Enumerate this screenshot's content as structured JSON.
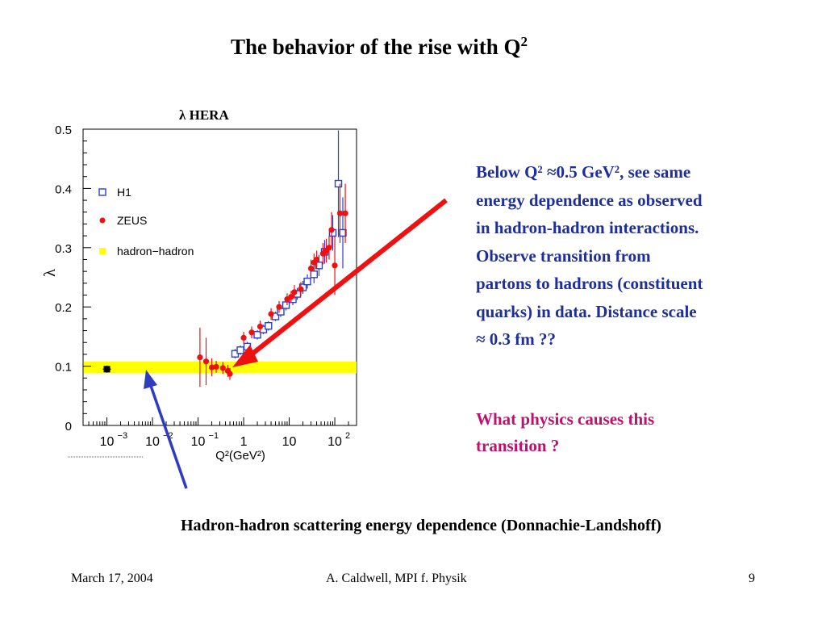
{
  "slide": {
    "title_main": "The behavior of the rise with Q",
    "title_sup": "2",
    "explanation_lines": [
      "Below Q² ≈0.5 GeV², see same",
      "energy dependence as observed",
      "in hadron-hadron interactions.",
      "Observe transition from",
      "partons to hadrons (constituent",
      "quarks) in data. Distance scale",
      "≈ 0.3 fm ??"
    ],
    "question_lines": [
      "What physics causes this",
      "transition ?"
    ],
    "caption": "Hadron-hadron scattering energy dependence (Donnachie-Landshoff)",
    "footer": {
      "date": "March 17, 2004",
      "author": "A. Caldwell, MPI f. Physik",
      "page": "9"
    },
    "colors": {
      "explanation": "#1f2f9a",
      "question": "#c0106e",
      "red_arrow": "#ee1111",
      "blue_arrow": "#2e3cc0"
    }
  },
  "chart_data": {
    "type": "scatter",
    "title": "λ HERA",
    "xlabel": "Q²(GeV²)",
    "ylabel": "λ",
    "xscale": "log",
    "xlim": [
      0.0003,
      300
    ],
    "ylim": [
      0,
      0.5
    ],
    "x_ticks": [
      {
        "value": 0.001,
        "base": "10",
        "exp": "−3"
      },
      {
        "value": 0.01,
        "base": "10",
        "exp": "−2"
      },
      {
        "value": 0.1,
        "base": "10",
        "exp": "−1"
      },
      {
        "value": 1,
        "base": "1",
        "exp": ""
      },
      {
        "value": 10,
        "base": "10",
        "exp": ""
      },
      {
        "value": 100,
        "base": "10",
        "exp": "2"
      }
    ],
    "y_ticks": [
      {
        "value": 0,
        "label": "0"
      },
      {
        "value": 0.1,
        "label": "0.1"
      },
      {
        "value": 0.2,
        "label": "0.2"
      },
      {
        "value": 0.3,
        "label": "0.3"
      },
      {
        "value": 0.4,
        "label": "0.4"
      },
      {
        "value": 0.5,
        "label": "0.5"
      }
    ],
    "band": {
      "name": "hadron−hadron",
      "y_low": 0.088,
      "y_high": 0.108,
      "color": "#ffff00"
    },
    "legend": {
      "placement": "top-left",
      "entries": [
        {
          "label": "H1",
          "marker": "open-square",
          "color": "#2a3ed0"
        },
        {
          "label": "ZEUS",
          "marker": "filled-circle",
          "color": "#ee1111"
        },
        {
          "label": "hadron−hadron",
          "marker": "filled-square",
          "color": "#ffff00"
        }
      ]
    },
    "series": [
      {
        "name": "H1",
        "marker": "open-square",
        "color": "#2a3ed0",
        "points": [
          {
            "x": 0.65,
            "y": 0.121,
            "err": 0.008
          },
          {
            "x": 0.85,
            "y": 0.127,
            "err": 0.008
          },
          {
            "x": 1.2,
            "y": 0.133,
            "err": 0.008
          },
          {
            "x": 2.0,
            "y": 0.153,
            "err": 0.008
          },
          {
            "x": 2.7,
            "y": 0.162,
            "err": 0.008
          },
          {
            "x": 3.5,
            "y": 0.168,
            "err": 0.008
          },
          {
            "x": 5.0,
            "y": 0.184,
            "err": 0.008
          },
          {
            "x": 6.5,
            "y": 0.192,
            "err": 0.009
          },
          {
            "x": 8.5,
            "y": 0.203,
            "err": 0.009
          },
          {
            "x": 12,
            "y": 0.213,
            "err": 0.01
          },
          {
            "x": 15,
            "y": 0.222,
            "err": 0.01
          },
          {
            "x": 20,
            "y": 0.233,
            "err": 0.011
          },
          {
            "x": 25,
            "y": 0.243,
            "err": 0.012
          },
          {
            "x": 35,
            "y": 0.255,
            "err": 0.015
          },
          {
            "x": 45,
            "y": 0.27,
            "err": 0.018
          },
          {
            "x": 60,
            "y": 0.293,
            "err": 0.02
          },
          {
            "x": 90,
            "y": 0.325,
            "err": 0.03
          },
          {
            "x": 120,
            "y": 0.408,
            "err": 0.09
          },
          {
            "x": 150,
            "y": 0.325,
            "err": 0.06
          }
        ]
      },
      {
        "name": "ZEUS",
        "marker": "filled-circle",
        "color": "#ee1111",
        "points": [
          {
            "x": 0.11,
            "y": 0.115,
            "err": 0.05
          },
          {
            "x": 0.15,
            "y": 0.108,
            "err": 0.04
          },
          {
            "x": 0.2,
            "y": 0.098,
            "err": 0.015
          },
          {
            "x": 0.25,
            "y": 0.099,
            "err": 0.01
          },
          {
            "x": 0.35,
            "y": 0.097,
            "err": 0.01
          },
          {
            "x": 0.45,
            "y": 0.092,
            "err": 0.01
          },
          {
            "x": 0.5,
            "y": 0.087,
            "err": 0.01
          },
          {
            "x": 1.0,
            "y": 0.148,
            "err": 0.01
          },
          {
            "x": 1.5,
            "y": 0.157,
            "err": 0.01
          },
          {
            "x": 2.3,
            "y": 0.167,
            "err": 0.01
          },
          {
            "x": 4.0,
            "y": 0.188,
            "err": 0.01
          },
          {
            "x": 6.0,
            "y": 0.2,
            "err": 0.01
          },
          {
            "x": 9.0,
            "y": 0.213,
            "err": 0.01
          },
          {
            "x": 11,
            "y": 0.217,
            "err": 0.01
          },
          {
            "x": 13,
            "y": 0.225,
            "err": 0.012
          },
          {
            "x": 18,
            "y": 0.23,
            "err": 0.012
          },
          {
            "x": 30,
            "y": 0.265,
            "err": 0.015
          },
          {
            "x": 35,
            "y": 0.275,
            "err": 0.015
          },
          {
            "x": 40,
            "y": 0.28,
            "err": 0.015
          },
          {
            "x": 55,
            "y": 0.29,
            "err": 0.018
          },
          {
            "x": 65,
            "y": 0.295,
            "err": 0.02
          },
          {
            "x": 75,
            "y": 0.3,
            "err": 0.02
          },
          {
            "x": 85,
            "y": 0.33,
            "err": 0.03
          },
          {
            "x": 100,
            "y": 0.27,
            "err": 0.05
          },
          {
            "x": 130,
            "y": 0.358,
            "err": 0.05
          },
          {
            "x": 170,
            "y": 0.358,
            "err": 0.05
          }
        ]
      },
      {
        "name": "hadron−hadron",
        "marker": "filled-square",
        "color": "#000000",
        "points": [
          {
            "x": 0.001,
            "y": 0.095,
            "err": 0.006
          }
        ]
      }
    ]
  }
}
